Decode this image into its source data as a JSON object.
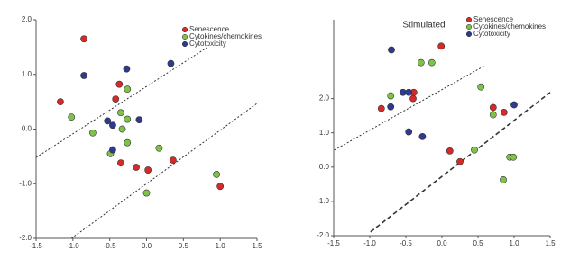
{
  "chart_data": [
    {
      "type": "scatter",
      "xlim": [
        -1.5,
        1.5
      ],
      "ylim": [
        -2.0,
        2.0
      ],
      "xticks": [
        {
          "value": -1.5,
          "label": "-1.5"
        },
        {
          "value": -1.0,
          "label": "-1.0"
        },
        -0.5,
        {
          "value": 0,
          "label": "0.0"
        },
        0.5,
        {
          "value": 1.0,
          "label": "1.0"
        },
        1.5
      ],
      "yticks": [
        {
          "value": -2.0,
          "label": "-2.0"
        },
        {
          "value": -1.0,
          "label": "-1.0"
        },
        {
          "value": 0,
          "label": "0.0"
        },
        {
          "value": 1.0,
          "label": "1.0"
        },
        {
          "value": 2.0,
          "label": "2.0"
        }
      ],
      "series": [
        {
          "name": "Senescence",
          "color": "#d42a2a",
          "x": [
            -0.85,
            -1.17,
            -0.37,
            -0.42,
            -0.35,
            -0.14,
            0.02,
            0.36,
            1.0
          ],
          "y": [
            1.65,
            0.5,
            0.82,
            0.55,
            -0.62,
            -0.7,
            -0.75,
            -0.57,
            -1.05
          ]
        },
        {
          "name": "Cytokines/chemokines",
          "color": "#7ec24a",
          "x": [
            -1.02,
            -0.73,
            -0.26,
            -0.35,
            -0.26,
            -0.33,
            -0.49,
            -0.26,
            0.17,
            0.0,
            0.95
          ],
          "y": [
            0.22,
            -0.07,
            0.73,
            0.3,
            0.18,
            0.0,
            -0.45,
            -0.25,
            -0.35,
            -1.17,
            -0.83
          ]
        },
        {
          "name": "Cytotoxicity",
          "color": "#2e3a8c",
          "x": [
            -0.85,
            -0.27,
            0.33,
            -0.53,
            -0.46,
            -0.1,
            -0.46
          ],
          "y": [
            0.98,
            1.1,
            1.2,
            0.15,
            0.07,
            0.17,
            -0.38
          ]
        }
      ],
      "lines": [
        {
          "x": [
            -1.5,
            0.83
          ],
          "y": [
            -0.52,
            1.5
          ],
          "style": "dotted"
        },
        {
          "x": [
            -1.02,
            1.5
          ],
          "y": [
            -2.0,
            0.47
          ],
          "style": "dotted"
        }
      ]
    },
    {
      "type": "scatter",
      "title": "Stimulated",
      "xlim": [
        -1.5,
        1.5
      ],
      "ylim": [
        -2.0,
        4.3
      ],
      "xticks": [
        {
          "value": -1.5,
          "label": "-1.5"
        },
        {
          "value": -1.0,
          "label": "-1.0"
        },
        -0.5,
        {
          "value": 0,
          "label": "0.0"
        },
        0.5,
        {
          "value": 1.0,
          "label": "1.0"
        },
        1.5
      ],
      "yticks": [
        {
          "value": -2.0,
          "label": "-2.0"
        },
        {
          "value": -1.0,
          "label": "-1.0"
        },
        {
          "value": 0,
          "label": "0.0"
        },
        {
          "value": 1.0,
          "label": "1.0"
        },
        {
          "value": 2.0,
          "label": "2.0"
        }
      ],
      "series": [
        {
          "name": "Senescence",
          "color": "#d42a2a",
          "x": [
            -0.01,
            -0.84,
            -0.39,
            -0.4,
            0.11,
            0.25,
            0.71,
            0.86
          ],
          "y": [
            3.53,
            1.71,
            2.18,
            2.0,
            0.47,
            0.16,
            1.74,
            1.6
          ]
        },
        {
          "name": "Cytokines/chemokines",
          "color": "#7ec24a",
          "x": [
            -0.29,
            -0.14,
            -0.71,
            0.54,
            0.45,
            0.71,
            0.94,
            0.99,
            0.85
          ],
          "y": [
            3.05,
            3.05,
            2.08,
            2.34,
            0.5,
            1.53,
            0.29,
            0.29,
            -0.37
          ]
        },
        {
          "name": "Cytotoxicity",
          "color": "#2e3a8c",
          "x": [
            -0.7,
            -0.54,
            -0.46,
            -0.71,
            -0.46,
            -0.27,
            1.0
          ],
          "y": [
            3.42,
            2.18,
            2.18,
            1.76,
            1.03,
            0.89,
            1.82
          ]
        }
      ],
      "lines": [
        {
          "x": [
            -1.49,
            0.6
          ],
          "y": [
            0.5,
            2.97
          ],
          "style": "dotted"
        },
        {
          "x": [
            -0.99,
            1.5
          ],
          "y": [
            -1.89,
            2.18
          ],
          "style": "dashed"
        }
      ]
    }
  ]
}
